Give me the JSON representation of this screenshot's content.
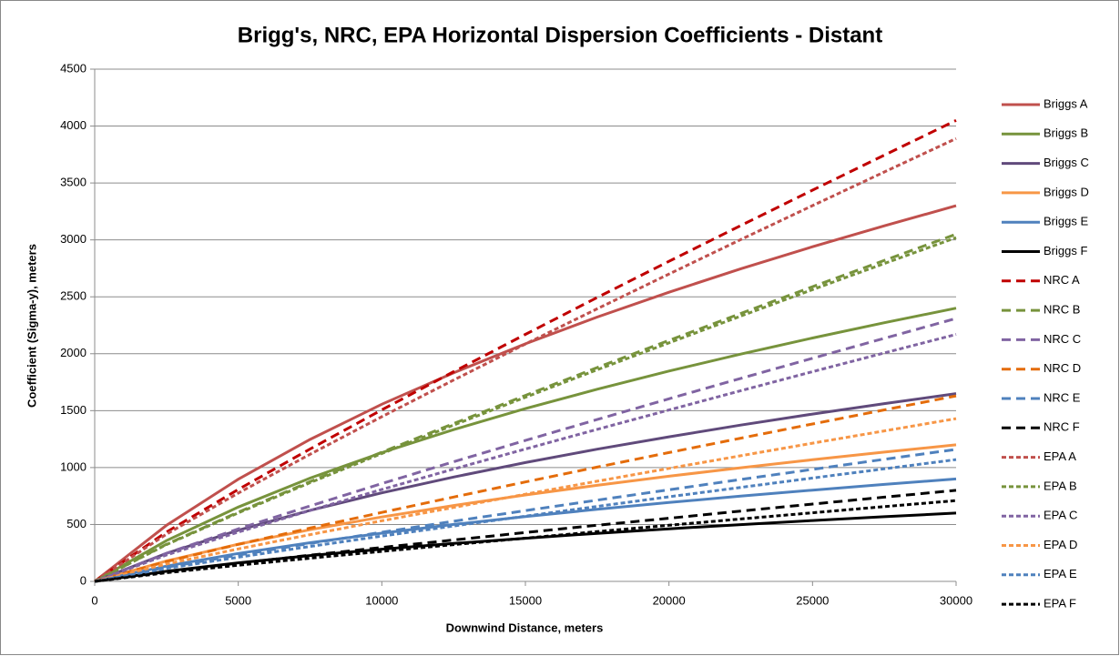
{
  "chart_data": {
    "type": "line",
    "title": "Brigg's, NRC, EPA Horizontal Dispersion Coefficients - Distant",
    "x_label": "Downwind Distance, meters",
    "y_label": "Coefficient (Sigma-y), meters",
    "x": [
      0,
      2500,
      5000,
      7500,
      10000,
      12500,
      15000,
      17500,
      20000,
      22500,
      25000,
      27500,
      30000
    ],
    "xlim": [
      0,
      30000
    ],
    "xticks": [
      0,
      5000,
      10000,
      15000,
      20000,
      25000,
      30000
    ],
    "ylim": [
      0,
      4500
    ],
    "yticks": [
      0,
      500,
      1000,
      1500,
      2000,
      2500,
      3000,
      3500,
      4000,
      4500
    ],
    "grid": true,
    "legend": "right",
    "series": [
      {
        "name": "Briggs A",
        "color": "#c0504d",
        "style": "solid",
        "values": [
          0,
          492,
          898,
          1247,
          1556,
          1833,
          2087,
          2322,
          2540,
          2746,
          2940,
          3124,
          3300
        ]
      },
      {
        "name": "Briggs B",
        "color": "#77933c",
        "style": "solid",
        "values": [
          0,
          358,
          653,
          907,
          1131,
          1333,
          1518,
          1688,
          1848,
          1997,
          2138,
          2272,
          2400
        ]
      },
      {
        "name": "Briggs C",
        "color": "#604a7b",
        "style": "solid",
        "values": [
          0,
          246,
          449,
          624,
          778,
          917,
          1044,
          1161,
          1270,
          1373,
          1470,
          1562,
          1650
        ]
      },
      {
        "name": "Briggs D",
        "color": "#f79646",
        "style": "solid",
        "values": [
          0,
          179,
          327,
          454,
          566,
          667,
          759,
          844,
          924,
          998,
          1069,
          1136,
          1200
        ]
      },
      {
        "name": "Briggs E",
        "color": "#4f81bd",
        "style": "solid",
        "values": [
          0,
          134,
          245,
          340,
          424,
          500,
          569,
          633,
          693,
          749,
          802,
          852,
          900
        ]
      },
      {
        "name": "Briggs F",
        "color": "#000000",
        "style": "solid",
        "values": [
          0,
          89,
          163,
          227,
          283,
          333,
          379,
          422,
          462,
          499,
          535,
          568,
          600
        ]
      },
      {
        "name": "NRC A",
        "color": "#c00000",
        "style": "dash",
        "values": [
          0,
          433,
          808,
          1163,
          1507,
          1842,
          2170,
          2494,
          2812,
          3126,
          3437,
          3745,
          4050
        ]
      },
      {
        "name": "NRC B",
        "color": "#77933c",
        "style": "dash",
        "values": [
          0,
          326,
          608,
          876,
          1135,
          1387,
          1634,
          1878,
          2117,
          2354,
          2589,
          2820,
          3050
        ]
      },
      {
        "name": "NRC C",
        "color": "#8064a2",
        "style": "dash",
        "values": [
          0,
          247,
          461,
          663,
          859,
          1051,
          1238,
          1422,
          1604,
          1783,
          1960,
          2136,
          2310
        ]
      },
      {
        "name": "NRC D",
        "color": "#e46c0a",
        "style": "dash",
        "values": [
          0,
          174,
          325,
          468,
          606,
          741,
          874,
          1004,
          1132,
          1258,
          1383,
          1507,
          1630
        ]
      },
      {
        "name": "NRC E",
        "color": "#4f81bd",
        "style": "dash",
        "values": [
          0,
          124,
          231,
          333,
          432,
          528,
          622,
          714,
          805,
          895,
          984,
          1073,
          1160
        ]
      },
      {
        "name": "NRC F",
        "color": "#000000",
        "style": "dash",
        "values": [
          0,
          85,
          160,
          230,
          298,
          364,
          429,
          493,
          555,
          618,
          679,
          740,
          800
        ]
      },
      {
        "name": "EPA A",
        "color": "#c0504d",
        "style": "shortdash",
        "values": [
          0,
          415,
          776,
          1117,
          1447,
          1769,
          2085,
          2395,
          2700,
          3003,
          3301,
          3597,
          3890
        ]
      },
      {
        "name": "EPA B",
        "color": "#77933c",
        "style": "shortdash",
        "values": [
          0,
          323,
          602,
          867,
          1123,
          1373,
          1618,
          1859,
          2096,
          2331,
          2563,
          2793,
          3020
        ]
      },
      {
        "name": "EPA C",
        "color": "#8064a2",
        "style": "shortdash",
        "values": [
          0,
          232,
          433,
          623,
          807,
          987,
          1163,
          1336,
          1506,
          1675,
          1842,
          2007,
          2170
        ]
      },
      {
        "name": "EPA D",
        "color": "#f79646",
        "style": "shortdash",
        "values": [
          0,
          153,
          285,
          411,
          532,
          650,
          766,
          880,
          993,
          1104,
          1214,
          1322,
          1430
        ]
      },
      {
        "name": "EPA E",
        "color": "#4f81bd",
        "style": "shortdash",
        "values": [
          0,
          114,
          213,
          307,
          398,
          487,
          573,
          659,
          743,
          826,
          908,
          989,
          1070
        ]
      },
      {
        "name": "EPA F",
        "color": "#000000",
        "style": "shortdash",
        "values": [
          0,
          76,
          142,
          204,
          264,
          323,
          380,
          437,
          493,
          548,
          603,
          657,
          710
        ]
      }
    ]
  }
}
